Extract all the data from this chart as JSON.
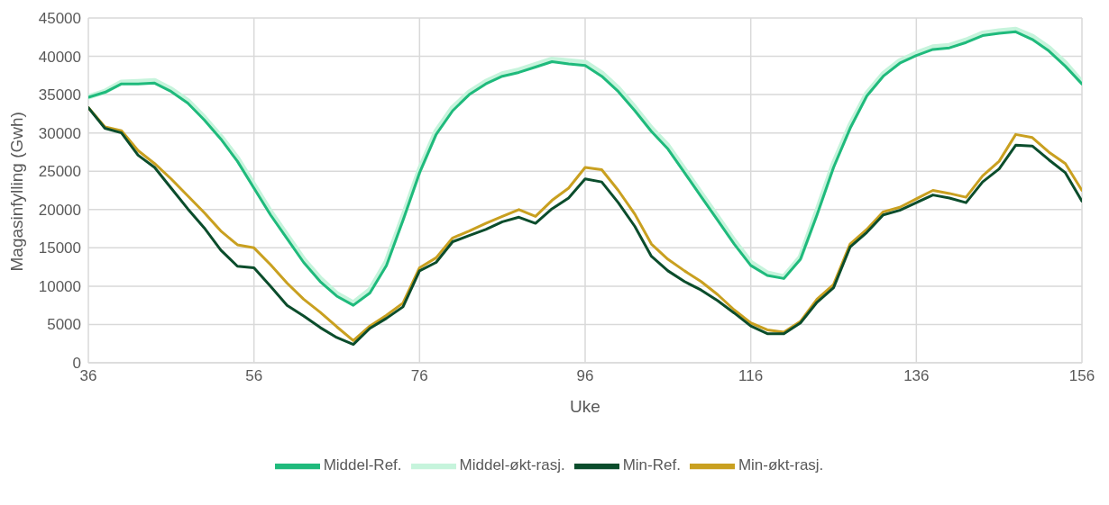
{
  "chart_data": {
    "type": "line",
    "xlabel": "Uke",
    "ylabel": "Magasinfylling (Gwh)",
    "x": [
      36,
      38,
      40,
      42,
      44,
      46,
      48,
      50,
      52,
      54,
      56,
      58,
      60,
      62,
      64,
      66,
      68,
      70,
      72,
      74,
      76,
      78,
      80,
      82,
      84,
      86,
      88,
      90,
      92,
      94,
      96,
      98,
      100,
      102,
      104,
      106,
      108,
      110,
      112,
      114,
      116,
      118,
      120,
      122,
      124,
      126,
      128,
      130,
      132,
      134,
      136,
      138,
      140,
      142,
      144,
      146,
      148,
      150,
      152,
      154,
      156
    ],
    "series": [
      {
        "name": "Middel-Ref.",
        "color": "#1fba7c",
        "values": [
          34650,
          35300,
          36400,
          36400,
          36500,
          35400,
          33900,
          31700,
          29200,
          26300,
          22800,
          19300,
          16200,
          13100,
          10600,
          8700,
          7500,
          9100,
          12700,
          18600,
          24800,
          29800,
          32900,
          35000,
          36400,
          37400,
          37900,
          38600,
          39300,
          39000,
          38800,
          37400,
          35400,
          32900,
          30200,
          27900,
          24800,
          21700,
          18600,
          15500,
          12700,
          11400,
          11000,
          13500,
          19300,
          25500,
          30600,
          34800,
          37400,
          39100,
          40100,
          40900,
          41100,
          41800,
          42700,
          43000,
          43200,
          42200,
          40700,
          38700,
          36400
        ]
      },
      {
        "name": "Middel-økt-rasj.",
        "color": "#c6f4dc",
        "values": [
          34700,
          35400,
          36600,
          36700,
          36800,
          35700,
          34200,
          32000,
          29500,
          26700,
          23200,
          19700,
          16600,
          13500,
          11000,
          9000,
          7800,
          9500,
          13200,
          19100,
          25200,
          30200,
          33300,
          35300,
          36700,
          37700,
          38200,
          38900,
          39600,
          39400,
          39200,
          37800,
          35800,
          33300,
          30600,
          28300,
          25200,
          22100,
          19000,
          15900,
          13100,
          11700,
          11200,
          13800,
          19800,
          26000,
          31000,
          35100,
          37700,
          39400,
          40400,
          41200,
          41400,
          42100,
          43000,
          43300,
          43500,
          42600,
          41100,
          39100,
          36600
        ]
      },
      {
        "name": "Min-Ref.",
        "color": "#0b4d2c",
        "values": [
          33300,
          30600,
          30000,
          27100,
          25500,
          22800,
          20100,
          17600,
          14700,
          12600,
          12400,
          10000,
          7500,
          6100,
          4600,
          3300,
          2400,
          4500,
          5800,
          7300,
          12000,
          13100,
          15800,
          16600,
          17400,
          18400,
          19000,
          18200,
          20100,
          21500,
          24000,
          23600,
          20900,
          17800,
          13900,
          12000,
          10600,
          9500,
          8100,
          6500,
          4800,
          3800,
          3800,
          5200,
          7900,
          9800,
          15100,
          17000,
          19300,
          19900,
          20900,
          21900,
          21500,
          20900,
          23600,
          25300,
          28400,
          28300,
          26500,
          24800,
          21100
        ]
      },
      {
        "name": "Min-økt-rasj.",
        "color": "#c9a020",
        "values": [
          33300,
          30800,
          30300,
          27700,
          26000,
          24000,
          21800,
          19600,
          17200,
          15400,
          15000,
          12800,
          10400,
          8300,
          6600,
          4700,
          2900,
          4800,
          6200,
          7800,
          12400,
          13700,
          16300,
          17200,
          18200,
          19100,
          20000,
          19100,
          21200,
          22800,
          25500,
          25200,
          22500,
          19400,
          15500,
          13500,
          12000,
          10600,
          8900,
          6900,
          5200,
          4300,
          4000,
          5400,
          8300,
          10200,
          15500,
          17400,
          19700,
          20300,
          21400,
          22500,
          22100,
          21600,
          24400,
          26300,
          29800,
          29400,
          27500,
          26000,
          22500
        ]
      }
    ],
    "xlim": [
      36,
      156
    ],
    "xticks": [
      36,
      56,
      76,
      96,
      116,
      136,
      156
    ],
    "ylim": [
      0,
      45000
    ],
    "yticks": [
      0,
      5000,
      10000,
      15000,
      20000,
      25000,
      30000,
      35000,
      40000,
      45000
    ],
    "grid": true,
    "legend": "bottom",
    "marker": "none",
    "line_style": "solid"
  }
}
